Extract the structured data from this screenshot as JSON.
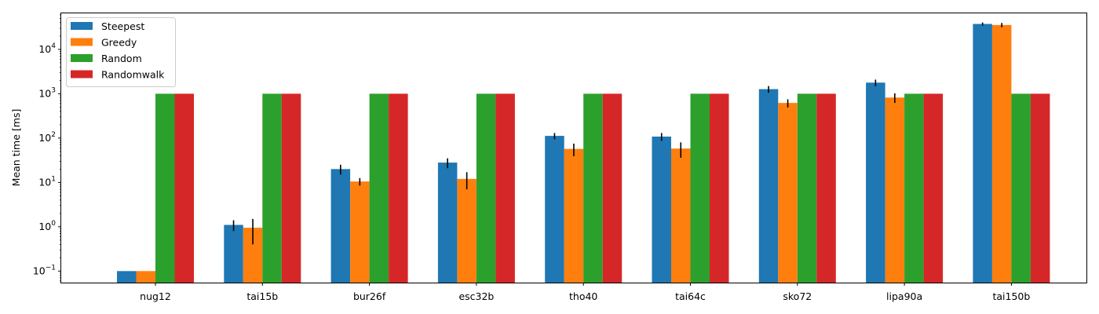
{
  "chart_data": {
    "type": "bar",
    "title": "",
    "xlabel": "",
    "ylabel": "Mean time [ms]",
    "yscale": "log",
    "ylim": [
      0.055,
      65000
    ],
    "yticks": [
      {
        "value": 0.1,
        "base": "10",
        "exp": "−1"
      },
      {
        "value": 1,
        "base": "10",
        "exp": "0"
      },
      {
        "value": 10,
        "base": "10",
        "exp": "1"
      },
      {
        "value": 100,
        "base": "10",
        "exp": "2"
      },
      {
        "value": 1000,
        "base": "10",
        "exp": "3"
      },
      {
        "value": 10000,
        "base": "10",
        "exp": "4"
      }
    ],
    "categories": [
      "nug12",
      "tai15b",
      "bur26f",
      "esc32b",
      "tho40",
      "tai64c",
      "sko72",
      "lipa90a",
      "tai150b"
    ],
    "legend_position": "upper-left",
    "grid": false,
    "series": [
      {
        "name": "Steepest",
        "color": "#1f77b4",
        "values": [
          0.1,
          1.1,
          20,
          28,
          112,
          108,
          1270,
          1780,
          37500
        ],
        "errors": [
          0,
          0.3,
          5,
          7,
          18,
          22,
          220,
          300,
          3000
        ]
      },
      {
        "name": "Greedy",
        "color": "#ff7f0e",
        "values": [
          0.1,
          0.95,
          10.5,
          12,
          57,
          58,
          620,
          820,
          35500
        ],
        "errors": [
          0,
          0.55,
          2,
          5,
          18,
          22,
          130,
          200,
          4000
        ]
      },
      {
        "name": "Random",
        "color": "#2ca02c",
        "values": [
          1000,
          1000,
          1000,
          1000,
          1000,
          1000,
          1000,
          1000,
          1000
        ],
        "errors": [
          0,
          0,
          0,
          0,
          0,
          0,
          0,
          0,
          0
        ]
      },
      {
        "name": "Randomwalk",
        "color": "#d62728",
        "values": [
          1000,
          1000,
          1000,
          1000,
          1000,
          1000,
          1000,
          1000,
          1000
        ],
        "errors": [
          0,
          0,
          0,
          0,
          0,
          0,
          0,
          0,
          0
        ]
      }
    ]
  }
}
